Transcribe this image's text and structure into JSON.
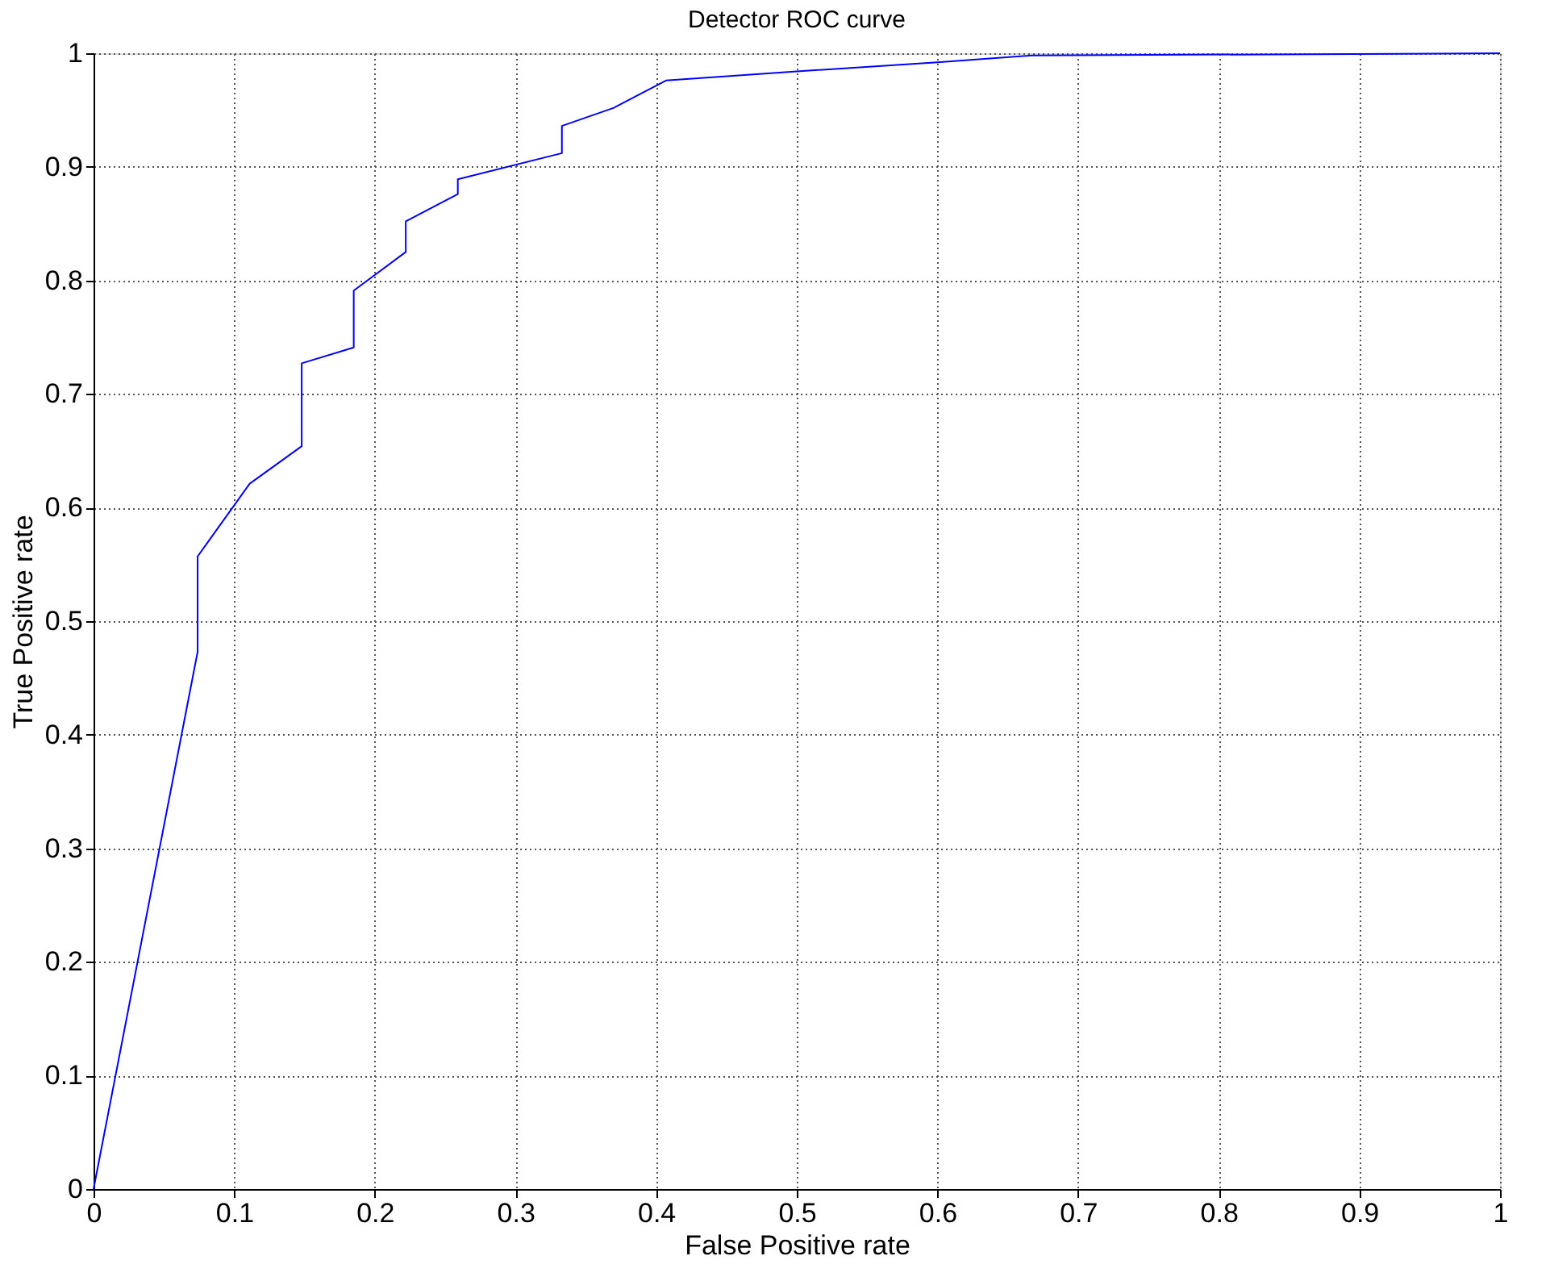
{
  "chart_data": {
    "type": "line",
    "title": "Detector ROC curve",
    "xlabel": "False Positive rate",
    "ylabel": "True Positive rate",
    "x": [
      0,
      0.074,
      0.074,
      0.111,
      0.148,
      0.148,
      0.185,
      0.185,
      0.222,
      0.222,
      0.259,
      0.259,
      0.333,
      0.333,
      0.37,
      0.407,
      0.5,
      0.6,
      0.667,
      1
    ],
    "series": [
      {
        "color": "#0000ff",
        "values": [
          0,
          0.473,
          0.557,
          0.621,
          0.654,
          0.727,
          0.741,
          0.791,
          0.825,
          0.852,
          0.876,
          0.889,
          0.912,
          0.936,
          0.952,
          0.976,
          0.984,
          0.992,
          0.998,
          1
        ]
      }
    ],
    "xlim": [
      0,
      1
    ],
    "ylim": [
      0,
      1
    ],
    "xticks": [
      0,
      0.1,
      0.2,
      0.3,
      0.4,
      0.5,
      0.6,
      0.7,
      0.8,
      0.9,
      1
    ],
    "yticks": [
      0,
      0.1,
      0.2,
      0.3,
      0.4,
      0.5,
      0.6,
      0.7,
      0.8,
      0.9,
      1
    ],
    "grid": true,
    "marker": "none",
    "line_style": "solid"
  }
}
